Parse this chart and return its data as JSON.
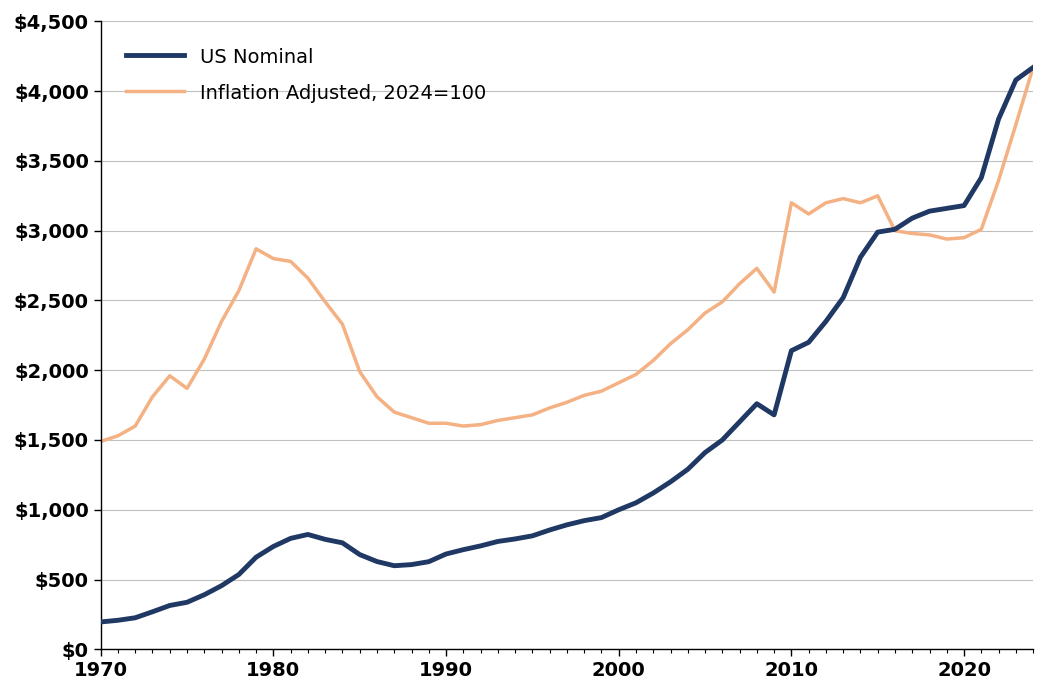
{
  "nominal_years": [
    1970,
    1971,
    1972,
    1973,
    1974,
    1975,
    1976,
    1977,
    1978,
    1979,
    1980,
    1981,
    1982,
    1983,
    1984,
    1985,
    1986,
    1987,
    1988,
    1989,
    1990,
    1991,
    1992,
    1993,
    1994,
    1995,
    1996,
    1997,
    1998,
    1999,
    2000,
    2001,
    2002,
    2003,
    2004,
    2005,
    2006,
    2007,
    2008,
    2009,
    2010,
    2011,
    2012,
    2013,
    2014,
    2015,
    2016,
    2017,
    2018,
    2019,
    2020,
    2021,
    2022,
    2023,
    2024
  ],
  "nominal_values": [
    196,
    208,
    226,
    269,
    314,
    337,
    391,
    456,
    536,
    660,
    737,
    795,
    823,
    788,
    763,
    679,
    629,
    599,
    607,
    628,
    683,
    714,
    741,
    773,
    791,
    813,
    855,
    892,
    922,
    944,
    1000,
    1050,
    1120,
    1200,
    1290,
    1410,
    1500,
    1630,
    1760,
    1680,
    2140,
    2200,
    2350,
    2520,
    2810,
    2990,
    3010,
    3090,
    3140,
    3160,
    3180,
    3380,
    3800,
    4080,
    4170
  ],
  "adjusted_years": [
    1970,
    1971,
    1972,
    1973,
    1974,
    1975,
    1976,
    1977,
    1978,
    1979,
    1980,
    1981,
    1982,
    1983,
    1984,
    1985,
    1986,
    1987,
    1988,
    1989,
    1990,
    1991,
    1992,
    1993,
    1994,
    1995,
    1996,
    1997,
    1998,
    1999,
    2000,
    2001,
    2002,
    2003,
    2004,
    2005,
    2006,
    2007,
    2008,
    2009,
    2010,
    2011,
    2012,
    2013,
    2014,
    2015,
    2016,
    2017,
    2018,
    2019,
    2020,
    2021,
    2022,
    2023,
    2024
  ],
  "adjusted_values": [
    1490,
    1530,
    1600,
    1810,
    1960,
    1870,
    2080,
    2350,
    2570,
    2870,
    2800,
    2780,
    2660,
    2490,
    2330,
    1990,
    1810,
    1700,
    1660,
    1620,
    1620,
    1600,
    1610,
    1640,
    1660,
    1680,
    1730,
    1770,
    1820,
    1850,
    1910,
    1970,
    2070,
    2190,
    2290,
    2410,
    2490,
    2620,
    2730,
    2560,
    3200,
    3120,
    3200,
    3230,
    3200,
    3250,
    3000,
    2980,
    2970,
    2940,
    2950,
    3010,
    3360,
    3760,
    4170
  ],
  "nominal_color": "#1f3864",
  "adjusted_color": "#f4b183",
  "nominal_label": "US Nominal",
  "adjusted_label": "Inflation Adjusted, 2024=100",
  "xlim": [
    1970,
    2024
  ],
  "ylim": [
    0,
    4500
  ],
  "yticks": [
    0,
    500,
    1000,
    1500,
    2000,
    2500,
    3000,
    3500,
    4000,
    4500
  ],
  "xticks_major": [
    1970,
    1980,
    1990,
    2000,
    2010,
    2020
  ],
  "xticks_minor": [
    1971,
    1972,
    1973,
    1974,
    1975,
    1976,
    1977,
    1978,
    1979,
    1981,
    1982,
    1983,
    1984,
    1985,
    1986,
    1987,
    1988,
    1989,
    1991,
    1992,
    1993,
    1994,
    1995,
    1996,
    1997,
    1998,
    1999,
    2001,
    2002,
    2003,
    2004,
    2005,
    2006,
    2007,
    2008,
    2009,
    2011,
    2012,
    2013,
    2014,
    2015,
    2016,
    2017,
    2018,
    2019,
    2021,
    2022,
    2023,
    2024
  ],
  "nominal_linewidth": 3.5,
  "adjusted_linewidth": 2.5,
  "background_color": "#ffffff",
  "grid_color": "#c0c0c0",
  "spine_color": "#000000",
  "tick_label_fontsize": 14,
  "tick_label_fontweight": "bold"
}
